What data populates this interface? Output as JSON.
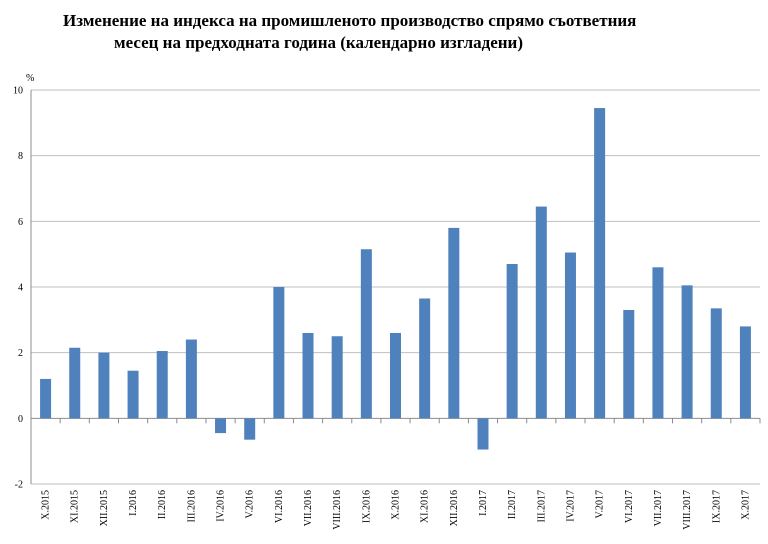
{
  "chart_data": {
    "type": "bar",
    "title_line1": "Изменение на индекса на промишленото производство спрямо съответния",
    "title_line2": "месец на предходната година (календарно изгладени)",
    "ylabel": "%",
    "xlabel": "",
    "ylim": [
      -2,
      10
    ],
    "yticks": [
      -2,
      0,
      2,
      4,
      6,
      8,
      10
    ],
    "grid": true,
    "bar_color": "#4f81bd",
    "categories": [
      "X.2015",
      "XI.2015",
      "XII.2015",
      "I.2016",
      "II.2016",
      "III.2016",
      "IV.2016",
      "V.2016",
      "VI.2016",
      "VII.2016",
      "VIII.2016",
      "IX.2016",
      "X.2016",
      "XI.2016",
      "XII.2016",
      "I.2017",
      "II.2017",
      "III.2017",
      "IV.2017",
      "V.2017",
      "VI.2017",
      "VII.2017",
      "VIII.2017",
      "IX.2017",
      "X.2017"
    ],
    "values": [
      1.2,
      2.15,
      2.0,
      1.45,
      2.05,
      2.4,
      -0.45,
      -0.65,
      4.0,
      2.6,
      2.5,
      5.15,
      2.6,
      3.65,
      5.8,
      -0.95,
      4.7,
      6.45,
      5.05,
      9.45,
      3.3,
      4.6,
      4.05,
      3.35,
      2.8
    ]
  }
}
